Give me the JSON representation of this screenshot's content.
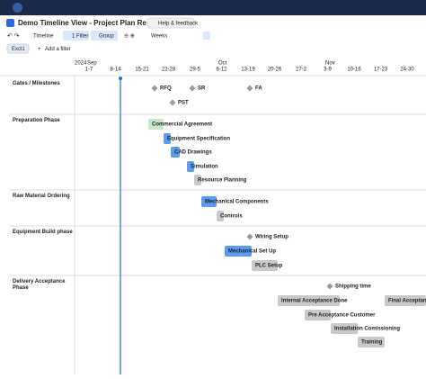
{
  "header": {
    "title": "Demo Timeline View - Project Plan Result",
    "help": "Help & feedback"
  },
  "toolbar": {
    "view": "Timeline",
    "filter": "1 Filter",
    "group": "Group",
    "scale": "Weeks"
  },
  "filters": {
    "tag": "Excl1",
    "add": "Add a filter"
  },
  "timeline": {
    "year": "2024",
    "months": [
      "Sep",
      "Oct",
      "Nov"
    ],
    "weeks": [
      "1-7",
      "8-14",
      "15-21",
      "22-28",
      "29-5",
      "6-12",
      "13-19",
      "20-26",
      "27-2",
      "3-9",
      "10-16",
      "17-23",
      "24-30"
    ],
    "groups": [
      "Gates / Milestones",
      "Preparation Phase",
      "Raw Material Ordering",
      "Equipment Build phase",
      "Delivery Acceptance Phase"
    ],
    "milestones": [
      "RFQ",
      "SR",
      "FA",
      "PST",
      "Wiring Setup",
      "Shipping time"
    ],
    "tasks": [
      "Commercial Agreement",
      "Equipment Specification",
      "CAD Drawings",
      "Simulation",
      "Resource Planning",
      "Mechanical Components",
      "Controls",
      "Mechanical Set Up",
      "PLC Setup",
      "Internal Acceptance Done",
      "Final Acceptance",
      "Pre Acceptance Customer",
      "Installation Comissioning",
      "Training"
    ]
  }
}
